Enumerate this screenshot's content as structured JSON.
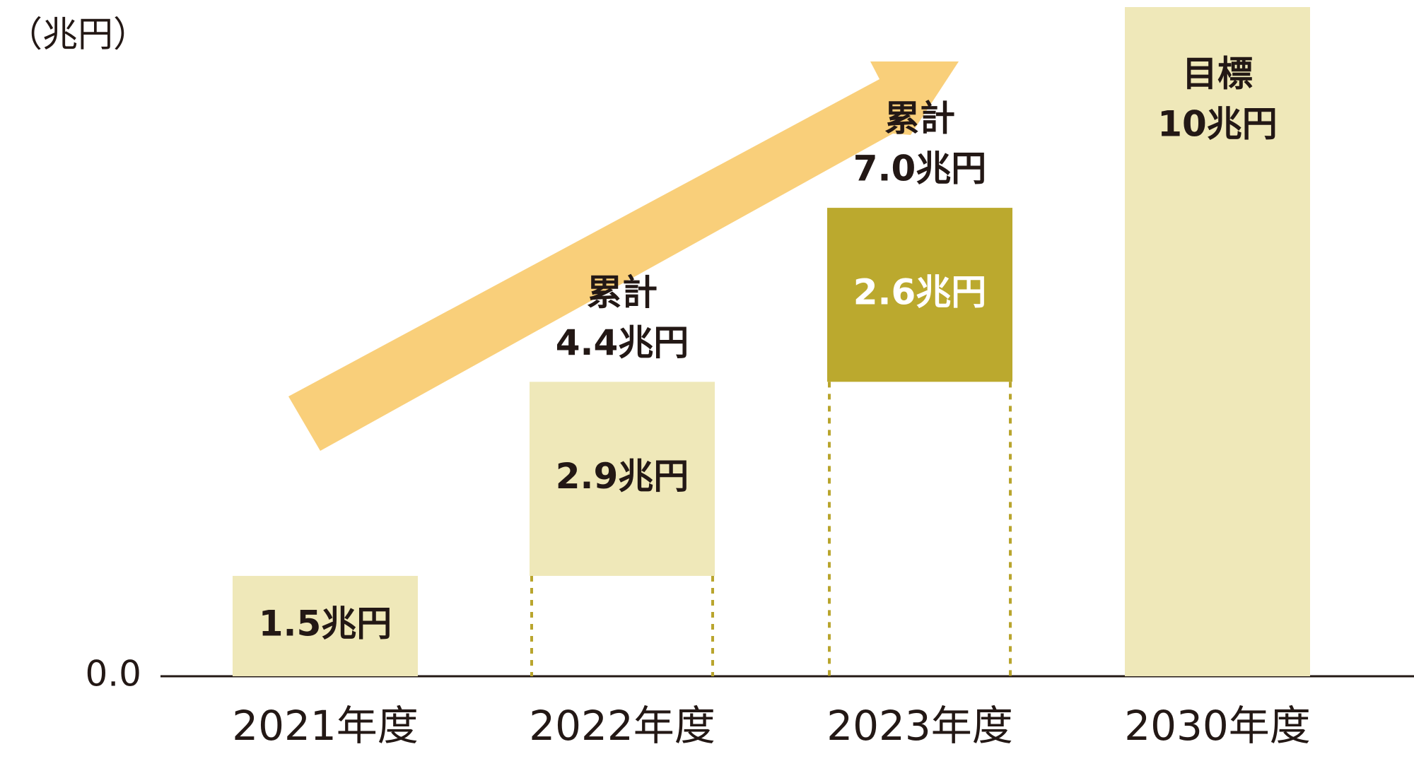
{
  "chart_data": {
    "type": "waterfall",
    "unit_label": "（兆円）",
    "categories": [
      "2021年度",
      "2022年度",
      "2023年度",
      "2030年度"
    ],
    "series": [
      {
        "values": [
          1.5,
          2.9,
          2.6,
          10
        ],
        "value_labels": [
          "1.5兆円",
          "2.9兆円",
          "2.6兆円",
          "10兆円"
        ],
        "colors": [
          "#efe8b9",
          "#efe8b9",
          "#bba92e",
          "#efe8b9"
        ],
        "label_colors": [
          "#231815",
          "#231815",
          "#ffffff",
          "#231815"
        ],
        "floating": [
          false,
          true,
          true,
          false
        ]
      }
    ],
    "target_label": "目標",
    "annotations": [
      {
        "category": "2022年度",
        "label": "累計",
        "value_label": "4.4兆円"
      },
      {
        "category": "2023年度",
        "label": "累計",
        "value_label": "7.0兆円"
      }
    ],
    "ylim": [
      0,
      10
    ],
    "yticks": [
      {
        "value": 0,
        "label": "0.0"
      }
    ],
    "arrow_color": "#f9cf7a",
    "guide_color": "#b9a52e"
  }
}
